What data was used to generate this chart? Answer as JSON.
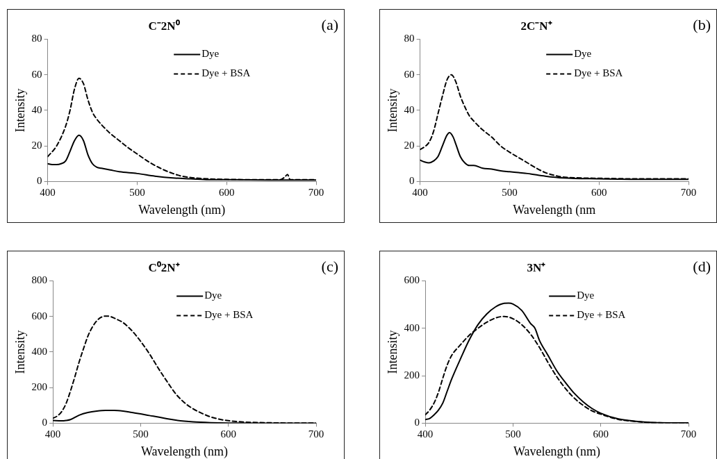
{
  "chart_data": [
    {
      "type": "line",
      "title": "C⁻2N⁰",
      "xlabel": "Wavelength (nm)",
      "ylabel": "Intensity",
      "annotations": [
        "(a)"
      ],
      "xlim": [
        400,
        700
      ],
      "xticks": [
        400,
        500,
        600,
        700
      ],
      "ylim": [
        0,
        80
      ],
      "yticks": [
        0,
        20,
        40,
        60,
        80
      ],
      "legend": "top right",
      "marker": "none",
      "series": [
        {
          "name": "Dye",
          "color": "#000000",
          "line_style": "solid",
          "x": [
            400,
            405,
            410,
            415,
            420,
            425,
            430,
            435,
            440,
            445,
            450,
            455,
            460,
            470,
            480,
            500,
            520,
            540,
            560,
            580,
            600,
            650,
            700
          ],
          "values": [
            10,
            9.5,
            9.5,
            10,
            11.5,
            17,
            23,
            26,
            23,
            15,
            10,
            8,
            7.5,
            6.5,
            5.5,
            4.5,
            3,
            2,
            1.5,
            1,
            1,
            0.8,
            0.8
          ]
        },
        {
          "name": "Dye + BSA",
          "color": "#000000",
          "line_style": "dashed",
          "x": [
            400,
            410,
            420,
            425,
            430,
            435,
            440,
            445,
            450,
            455,
            460,
            470,
            480,
            490,
            500,
            510,
            520,
            530,
            540,
            550,
            560,
            580,
            600,
            640,
            660,
            665,
            668,
            671,
            700
          ],
          "values": [
            14,
            20,
            31,
            40,
            52,
            58,
            55,
            46,
            39,
            35,
            32,
            27,
            23,
            19,
            15.5,
            12,
            9,
            6.5,
            4.5,
            3,
            2.2,
            1.5,
            1.2,
            1,
            1,
            2.5,
            4,
            1,
            1
          ]
        }
      ]
    },
    {
      "type": "line",
      "title": "2C⁻N⁺",
      "xlabel": "Wavelength (nm",
      "ylabel": "Intensity",
      "annotations": [
        "(b)"
      ],
      "xlim": [
        400,
        700
      ],
      "xticks": [
        400,
        500,
        600,
        700
      ],
      "ylim": [
        0,
        80
      ],
      "yticks": [
        0,
        20,
        40,
        60,
        80
      ],
      "legend": "top right",
      "marker": "none",
      "series": [
        {
          "name": "Dye",
          "color": "#000000",
          "line_style": "solid",
          "x": [
            400,
            405,
            410,
            415,
            420,
            425,
            430,
            433,
            437,
            440,
            445,
            450,
            455,
            460,
            470,
            480,
            490,
            500,
            510,
            520,
            540,
            560,
            600,
            650,
            700
          ],
          "values": [
            12,
            11,
            10.5,
            11.5,
            14,
            20,
            26,
            27.5,
            25,
            21,
            14,
            10.5,
            9,
            9,
            7.5,
            7,
            6,
            5.5,
            5,
            4.5,
            3,
            2,
            1.5,
            1.2,
            1.2
          ]
        },
        {
          "name": "Dye + BSA",
          "color": "#000000",
          "line_style": "dashed",
          "x": [
            400,
            405,
            410,
            415,
            420,
            425,
            430,
            435,
            440,
            445,
            450,
            455,
            460,
            470,
            480,
            490,
            500,
            510,
            520,
            530,
            540,
            550,
            560,
            580,
            600,
            650,
            700
          ],
          "values": [
            18,
            19.5,
            22,
            28,
            38,
            48,
            57,
            60,
            56,
            48,
            42,
            37,
            34,
            29,
            25,
            20,
            16.5,
            13.5,
            10.5,
            7.5,
            5,
            3.5,
            2.5,
            2,
            1.8,
            1.5,
            1.5
          ]
        }
      ]
    },
    {
      "type": "line",
      "title": "C⁰2N⁺",
      "xlabel": "Wavelength (nm)",
      "ylabel": "Intensity",
      "annotations": [
        "(c)"
      ],
      "xlim": [
        400,
        700
      ],
      "xticks": [
        400,
        500,
        600,
        700
      ],
      "ylim": [
        0,
        800
      ],
      "yticks": [
        0,
        200,
        400,
        600,
        800
      ],
      "legend": "top right",
      "marker": "none",
      "series": [
        {
          "name": "Dye",
          "color": "#000000",
          "line_style": "solid",
          "x": [
            400,
            410,
            415,
            420,
            430,
            440,
            450,
            460,
            470,
            480,
            490,
            500,
            510,
            520,
            530,
            540,
            550,
            560,
            580,
            600,
            650,
            700
          ],
          "values": [
            15,
            13,
            15,
            20,
            45,
            60,
            68,
            72,
            72,
            68,
            60,
            52,
            43,
            35,
            25,
            17,
            11,
            7,
            3,
            1,
            0,
            0
          ]
        },
        {
          "name": "Dye + BSA",
          "color": "#000000",
          "line_style": "dashed",
          "x": [
            400,
            405,
            410,
            415,
            420,
            425,
            430,
            435,
            440,
            445,
            450,
            455,
            460,
            465,
            470,
            480,
            490,
            500,
            510,
            520,
            530,
            540,
            550,
            560,
            570,
            580,
            590,
            600,
            620,
            650,
            700
          ],
          "values": [
            28,
            40,
            65,
            110,
            180,
            260,
            345,
            420,
            490,
            540,
            575,
            595,
            602,
            600,
            590,
            565,
            520,
            460,
            390,
            310,
            235,
            165,
            115,
            80,
            55,
            35,
            22,
            14,
            6,
            2,
            0
          ]
        }
      ]
    },
    {
      "type": "line",
      "title": "3N⁺",
      "xlabel": "Wavelength (nm)",
      "ylabel": "Intensity",
      "annotations": [
        "(d)"
      ],
      "xlim": [
        400,
        700
      ],
      "xticks": [
        400,
        500,
        600,
        700
      ],
      "ylim": [
        0,
        600
      ],
      "yticks": [
        0,
        200,
        400,
        600
      ],
      "legend": "top right",
      "marker": "none",
      "series": [
        {
          "name": "Dye",
          "color": "#000000",
          "line_style": "solid",
          "x": [
            400,
            405,
            410,
            415,
            420,
            425,
            430,
            440,
            450,
            460,
            470,
            480,
            490,
            495,
            500,
            510,
            520,
            525,
            530,
            540,
            550,
            560,
            570,
            580,
            590,
            600,
            620,
            640,
            660,
            700
          ],
          "values": [
            15,
            20,
            35,
            55,
            85,
            135,
            185,
            270,
            350,
            415,
            460,
            490,
            505,
            506,
            502,
            475,
            420,
            400,
            350,
            285,
            220,
            170,
            125,
            90,
            62,
            42,
            18,
            8,
            3,
            1
          ]
        },
        {
          "name": "Dye + BSA",
          "color": "#000000",
          "line_style": "dashed",
          "x": [
            400,
            405,
            410,
            415,
            420,
            425,
            430,
            440,
            450,
            460,
            470,
            480,
            490,
            500,
            510,
            520,
            530,
            540,
            550,
            560,
            570,
            580,
            590,
            600,
            620,
            640,
            660,
            700
          ],
          "values": [
            35,
            55,
            85,
            130,
            190,
            245,
            285,
            330,
            370,
            400,
            425,
            443,
            450,
            440,
            415,
            375,
            320,
            255,
            195,
            145,
            105,
            75,
            52,
            38,
            16,
            7,
            2,
            1
          ]
        }
      ]
    }
  ]
}
